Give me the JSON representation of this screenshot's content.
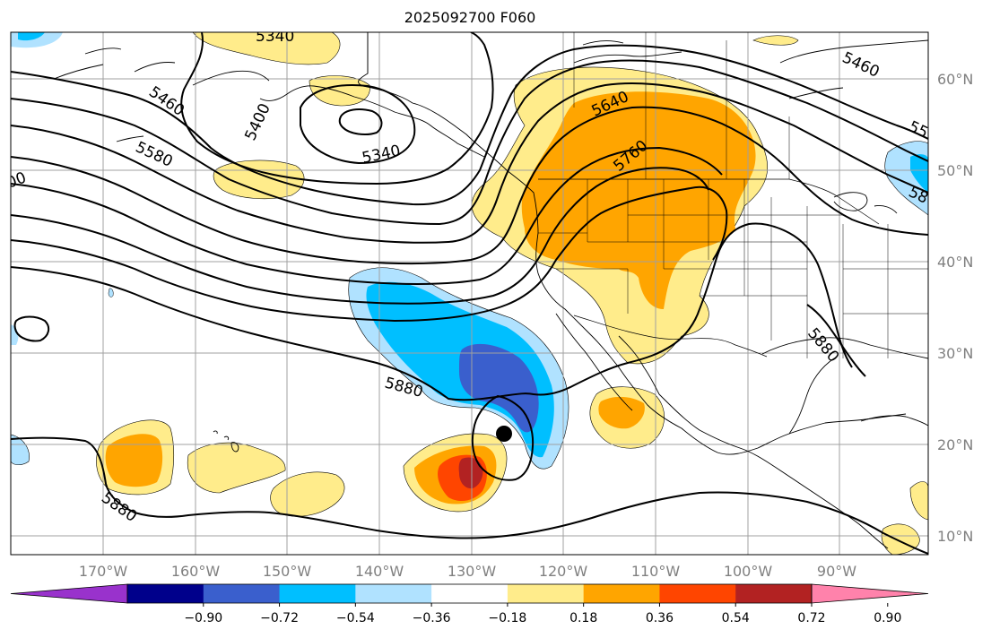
{
  "title": "2025092700 F060",
  "map": {
    "lat_labels": [
      "60°N",
      "50°N",
      "40°N",
      "30°N",
      "20°N",
      "10°N"
    ],
    "lon_labels": [
      "170°W",
      "160°W",
      "150°W",
      "140°W",
      "130°W",
      "120°W",
      "110°W",
      "100°W",
      "90°W"
    ],
    "contour_labels": [
      "5340",
      "5400",
      "5460",
      "5340",
      "5580",
      "00",
      "5640",
      "5760",
      "5460",
      "55",
      "58",
      "5880",
      "5880",
      "5880"
    ],
    "storm_marker": "tropical cyclone position",
    "colors": {
      "contour": "#000000",
      "coast": "#000000",
      "grid": "#a0a0a0"
    }
  },
  "colorbar": {
    "ticks": [
      "−0.90",
      "−0.72",
      "−0.54",
      "−0.36",
      "−0.18",
      "0.18",
      "0.36",
      "0.54",
      "0.72",
      "0.90"
    ],
    "colors": [
      "#9932cc",
      "#00008b",
      "#3a5fcd",
      "#00bfff",
      "#b0e2ff",
      "#ffffff",
      "#ffec8b",
      "#ffa500",
      "#ff4500",
      "#b22222",
      "#ff82ab"
    ]
  }
}
